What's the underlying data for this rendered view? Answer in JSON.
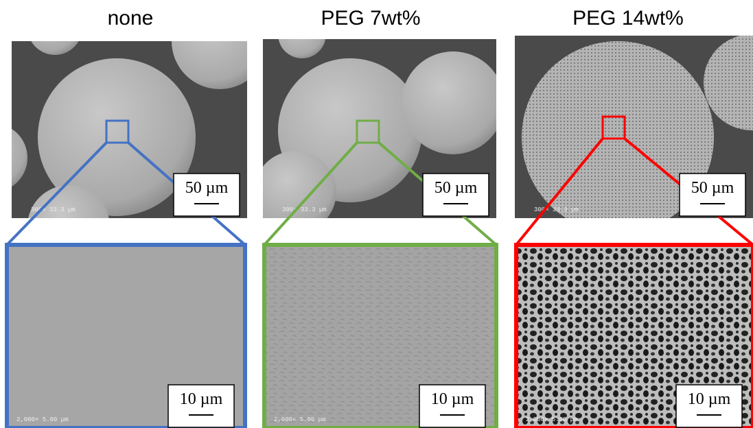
{
  "panels": [
    {
      "title": "none",
      "color": "#4472c4",
      "top": {
        "scale_label": "50 µm",
        "info": "300× 33.3 µm"
      },
      "bottom": {
        "scale_label": "10 µm",
        "info": "2,000× 5.00 µm"
      }
    },
    {
      "title": "PEG 7wt%",
      "color": "#70ad47",
      "top": {
        "scale_label": "50 µm",
        "info": "300× 33.3 µm"
      },
      "bottom": {
        "scale_label": "10 µm",
        "info": "2,000× 5.00 µm"
      }
    },
    {
      "title": "PEG 14wt%",
      "color": "#ff0000",
      "top": {
        "scale_label": "50 µm",
        "info": "300× 33.3 µm"
      },
      "bottom": {
        "scale_label": "10 µm",
        "info": "2,000× 5.00 µm"
      }
    }
  ]
}
